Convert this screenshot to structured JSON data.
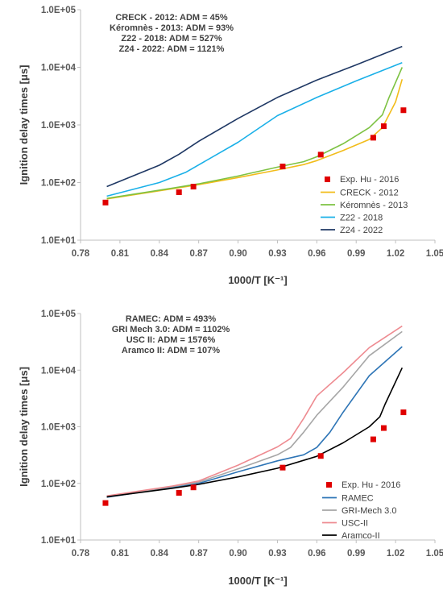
{
  "chart_data": [
    {
      "type": "line",
      "xlabel": "1000/T [K⁻¹]",
      "ylabel": "Ignition delay times [μs]",
      "xlim": [
        0.78,
        1.05
      ],
      "ylim": [
        10,
        100000
      ],
      "yscale": "log",
      "x_ticks": [
        "0.78",
        "0.81",
        "0.84",
        "0.87",
        "0.90",
        "0.93",
        "0.96",
        "0.99",
        "1.02",
        "1.05"
      ],
      "y_ticks": [
        "1.0E+01",
        "1.0E+02",
        "1.0E+03",
        "1.0E+04",
        "1.0E+05"
      ],
      "annotations": [
        "CRECK - 2012: ADM = 45%",
        "Kéromnès - 2013: ADM = 93%",
        "Z22 - 2018: ADM = 527%",
        "Z24 - 2022: ADM = 1121%"
      ],
      "legend_position": "bottom-right",
      "exp": {
        "name": "Exp. Hu - 2016",
        "color": "#e00000",
        "x": [
          0.799,
          0.855,
          0.866,
          0.934,
          0.963,
          1.003,
          1.011,
          1.026
        ],
        "y": [
          45,
          68,
          85,
          190,
          305,
          600,
          950,
          1800
        ]
      },
      "series": [
        {
          "name": "CRECK - 2012",
          "color": "#f2bc1a",
          "x": [
            0.8,
            0.85,
            0.87,
            0.9,
            0.93,
            0.95,
            0.96,
            0.98,
            1.0,
            1.01,
            1.02,
            1.025
          ],
          "y": [
            52,
            78,
            92,
            122,
            165,
            205,
            240,
            360,
            560,
            900,
            2500,
            6200
          ]
        },
        {
          "name": "Kéromnès - 2013",
          "color": "#7dc243",
          "x": [
            0.8,
            0.85,
            0.87,
            0.9,
            0.93,
            0.95,
            0.96,
            0.98,
            1.0,
            1.01,
            1.015,
            1.025
          ],
          "y": [
            53,
            80,
            95,
            130,
            185,
            230,
            280,
            470,
            900,
            1500,
            3000,
            10000
          ]
        },
        {
          "name": "Z22 - 2018",
          "color": "#1ab0e8",
          "x": [
            0.8,
            0.84,
            0.86,
            0.9,
            0.93,
            0.96,
            0.99,
            1.025
          ],
          "y": [
            58,
            100,
            150,
            500,
            1450,
            3000,
            5800,
            12000
          ]
        },
        {
          "name": "Z24 - 2022",
          "color": "#1f3864",
          "x": [
            0.8,
            0.84,
            0.855,
            0.87,
            0.9,
            0.93,
            0.96,
            0.99,
            1.025
          ],
          "y": [
            85,
            200,
            310,
            520,
            1300,
            3000,
            6000,
            11000,
            23000
          ]
        }
      ]
    },
    {
      "type": "line",
      "xlabel": "1000/T [K⁻¹]",
      "ylabel": "Ignition delay times [μs]",
      "xlim": [
        0.78,
        1.05
      ],
      "ylim": [
        10,
        100000
      ],
      "yscale": "log",
      "x_ticks": [
        "0.78",
        "0.81",
        "0.84",
        "0.87",
        "0.90",
        "0.93",
        "0.96",
        "0.99",
        "1.02",
        "1.05"
      ],
      "y_ticks": [
        "1.0E+01",
        "1.0E+02",
        "1.0E+03",
        "1.0E+04",
        "1.0E+05"
      ],
      "annotations": [
        "RAMEC: ADM = 493%",
        "GRI Mech 3.0: ADM = 1102%",
        "USC II: ADM = 1576%",
        "Aramco II: ADM = 107%"
      ],
      "legend_position": "bottom-right",
      "exp": {
        "name": "Exp. Hu - 2016",
        "color": "#e00000",
        "x": [
          0.799,
          0.855,
          0.866,
          0.934,
          0.963,
          1.003,
          1.011,
          1.026
        ],
        "y": [
          45,
          68,
          85,
          190,
          305,
          600,
          950,
          1800
        ]
      },
      "series": [
        {
          "name": "RAMEC",
          "color": "#2e75b6",
          "x": [
            0.8,
            0.85,
            0.87,
            0.9,
            0.93,
            0.95,
            0.96,
            0.97,
            0.98,
            1.0,
            1.025
          ],
          "y": [
            57,
            85,
            100,
            160,
            250,
            320,
            430,
            800,
            1800,
            8000,
            26000
          ]
        },
        {
          "name": "GRI-Mech 3.0",
          "color": "#a6a6a6",
          "x": [
            0.8,
            0.85,
            0.87,
            0.9,
            0.93,
            0.94,
            0.95,
            0.96,
            0.98,
            1.0,
            1.025
          ],
          "y": [
            58,
            88,
            105,
            180,
            320,
            430,
            800,
            1600,
            5000,
            18000,
            48000
          ]
        },
        {
          "name": "USC-II",
          "color": "#ee8b91",
          "x": [
            0.8,
            0.85,
            0.87,
            0.9,
            0.93,
            0.94,
            0.95,
            0.96,
            0.98,
            1.0,
            1.025
          ],
          "y": [
            60,
            90,
            110,
            210,
            440,
            620,
            1400,
            3500,
            9000,
            25000,
            60000
          ]
        },
        {
          "name": "Aramco-II",
          "color": "#000000",
          "x": [
            0.8,
            0.85,
            0.87,
            0.9,
            0.93,
            0.96,
            0.98,
            1.0,
            1.008,
            1.012,
            1.025
          ],
          "y": [
            58,
            82,
            96,
            130,
            185,
            300,
            520,
            1000,
            1500,
            2500,
            11000
          ]
        }
      ]
    }
  ]
}
